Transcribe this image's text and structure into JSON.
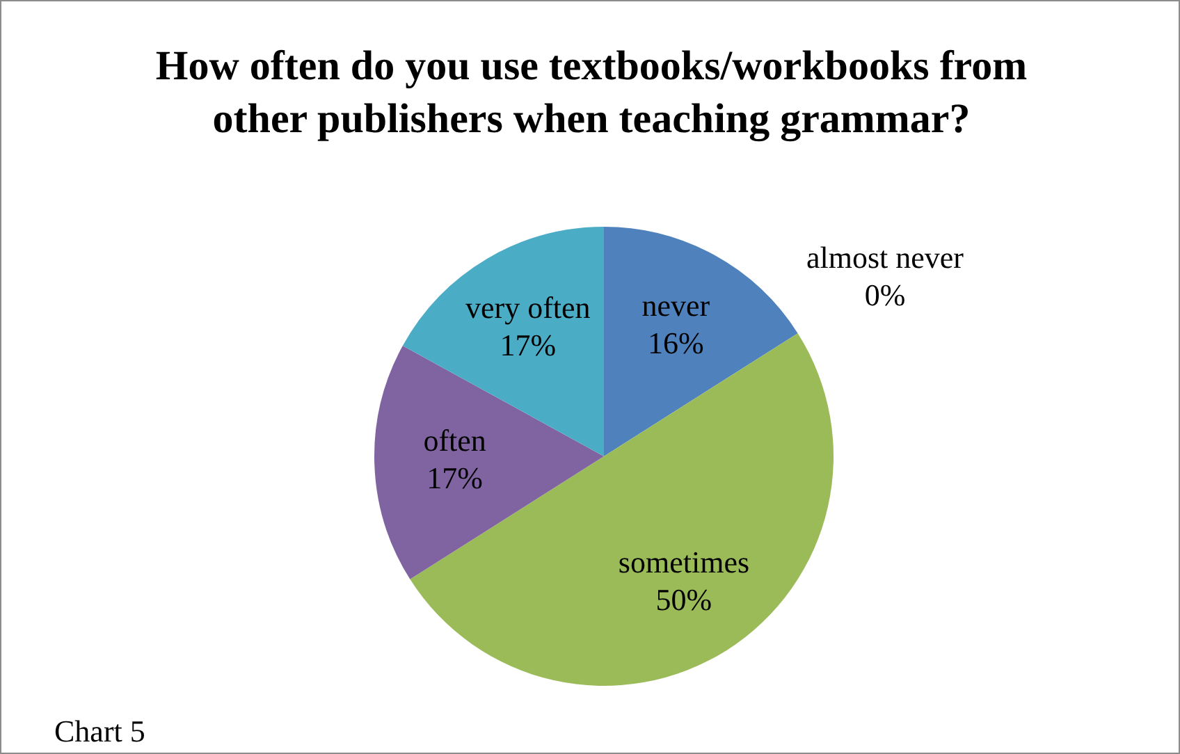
{
  "chart_data": {
    "type": "pie",
    "title": "How often do you use textbooks/workbooks from other publishers when teaching grammar?",
    "categories": [
      "never",
      "almost never",
      "sometimes",
      "often",
      "very often"
    ],
    "values": [
      16,
      0,
      50,
      17,
      17
    ],
    "value_labels": [
      "16%",
      "0%",
      "50%",
      "17%",
      "17%"
    ],
    "colors": [
      "#4f81bd",
      "#c0504d",
      "#9bbb59",
      "#8064a2",
      "#4bacc6"
    ],
    "annotations": [
      "Chart 5"
    ]
  }
}
